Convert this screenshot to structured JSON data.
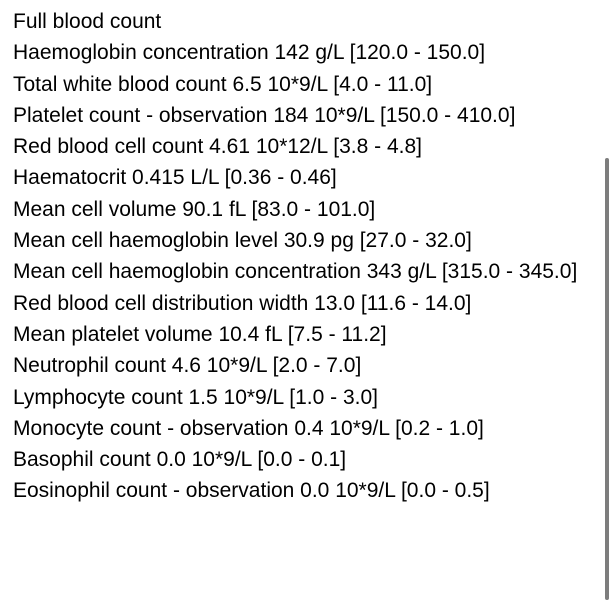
{
  "report": {
    "title": "Full blood count",
    "rows": [
      "Haemoglobin concentration 142 g/L [120.0 - 150.0]",
      "Total white blood count 6.5 10*9/L [4.0 - 11.0]",
      "Platelet count - observation 184 10*9/L [150.0 - 410.0]",
      "Red blood cell count 4.61 10*12/L [3.8 - 4.8]",
      "Haematocrit 0.415 L/L [0.36 - 0.46]",
      "Mean cell volume 90.1 fL [83.0 - 101.0]",
      "Mean cell haemoglobin level 30.9 pg [27.0 - 32.0]",
      "Mean cell haemoglobin concentration 343 g/L [315.0 - 345.0]",
      "Red blood cell distribution width 13.0 [11.6 - 14.0]",
      "Mean platelet volume 10.4 fL [7.5 - 11.2]",
      "Neutrophil count 4.6 10*9/L [2.0 - 7.0]",
      "Lymphocyte count 1.5 10*9/L [1.0 - 3.0]",
      "Monocyte count - observation 0.4 10*9/L [0.2 - 1.0]",
      "Basophil count 0.0 10*9/L [0.0 - 0.1]",
      "Eosinophil count - observation 0.0 10*9/L [0.0 - 0.5]"
    ]
  }
}
